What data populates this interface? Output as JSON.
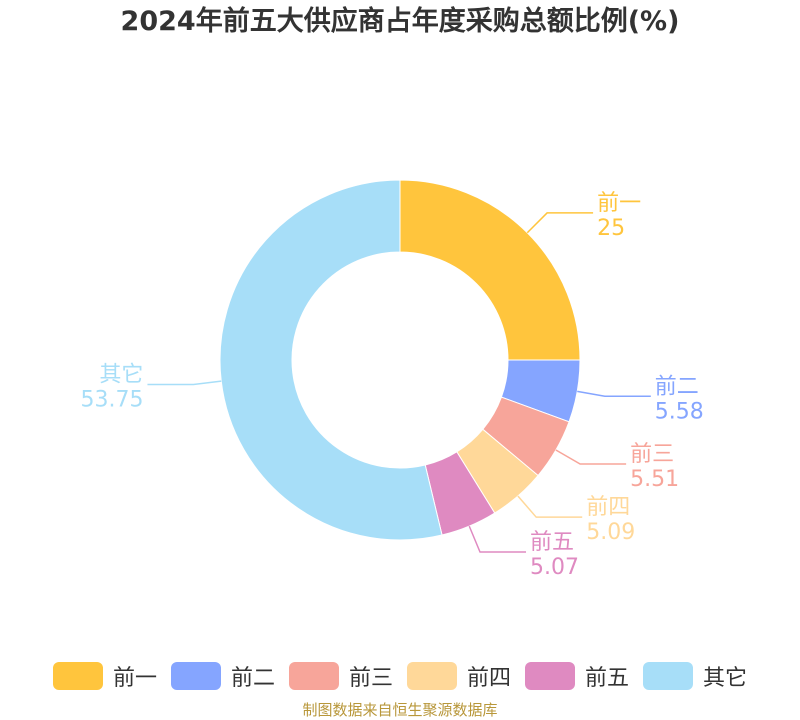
{
  "title": "2024年前五大供应商占年度采购总额比例(%)",
  "source": "制图数据来自恒生聚源数据库",
  "source_color": "#b8973a",
  "chart_data": {
    "type": "pie",
    "variant": "donut",
    "title": "2024年前五大供应商占年度采购总额比例(%)",
    "legend_position": "bottom",
    "slices": [
      {
        "name": "前一",
        "value": 25,
        "label": "25",
        "color": "#ffc53d"
      },
      {
        "name": "前二",
        "value": 5.58,
        "label": "5.58",
        "color": "#85a5ff"
      },
      {
        "name": "前三",
        "value": 5.51,
        "label": "5.51",
        "color": "#f7a59a"
      },
      {
        "name": "前四",
        "value": 5.09,
        "label": "5.09",
        "color": "#ffd899"
      },
      {
        "name": "前五",
        "value": 5.07,
        "label": "5.07",
        "color": "#df8ac1"
      },
      {
        "name": "其它",
        "value": 53.75,
        "label": "53.75",
        "color": "#a7def8"
      }
    ]
  }
}
